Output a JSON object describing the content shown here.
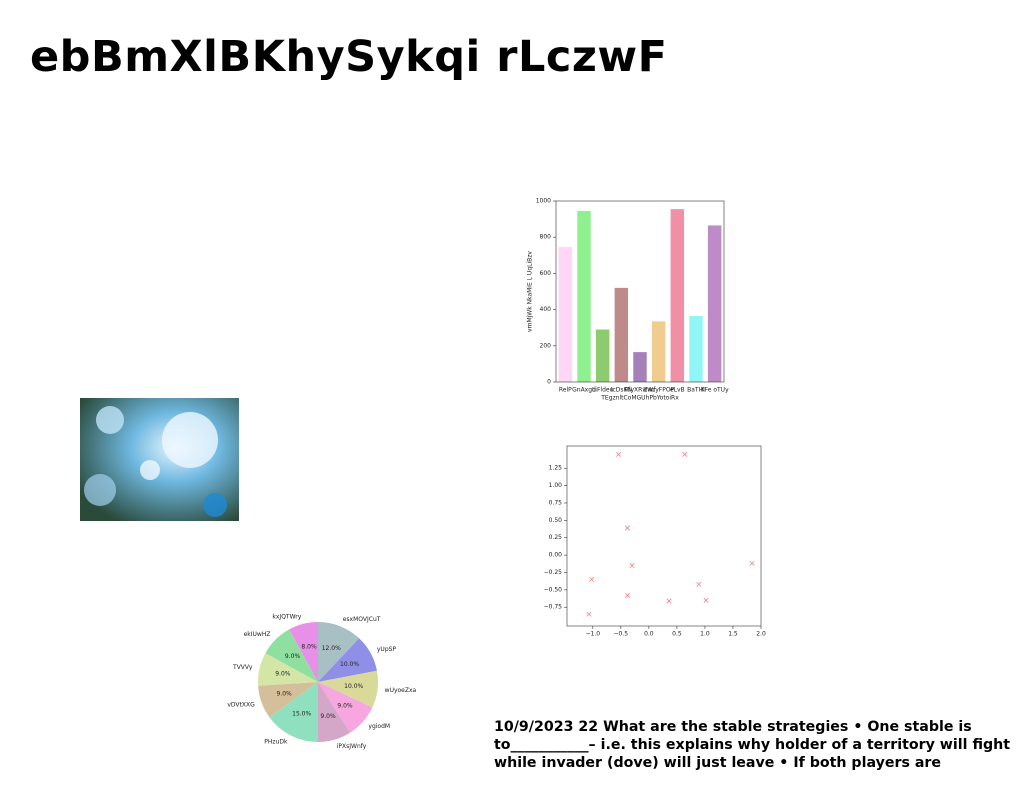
{
  "title": "ebBmXlBKhySykqi rLczwF",
  "text": "10/9/2023 22 What are the stable strategies • One stable is to___________– i.e. this explains why holder of a territory will fight while invader (dove) will just leave • If both players are",
  "chart_data": [
    {
      "type": "bar",
      "categories": [
        "RelP",
        "GnAxgd",
        "LiFldeu",
        "IcDsKN",
        "RlyXRwwz",
        "ZWfyFPOP",
        "eLvB",
        "BaTHI",
        "KFe oTUy"
      ],
      "values": [
        745,
        945,
        290,
        520,
        165,
        335,
        955,
        365,
        865
      ],
      "colors": [
        "#ffd6f5",
        "#8ef08e",
        "#8ccc6e",
        "#bf8a8a",
        "#a680b8",
        "#f0cc8f",
        "#f08fa6",
        "#8ff5f5",
        "#bf8ac8"
      ],
      "xlabel": "TEgznltCoMGUhPbYotoiRx",
      "ylabel": "vmMjWk NkaMiE L UqLiBzv",
      "ylim": [
        0,
        1000
      ],
      "yticks": [
        0,
        200,
        400,
        600,
        800,
        1000
      ]
    },
    {
      "type": "scatter",
      "color": "#f08080",
      "marker": "x",
      "x": [
        -1.07,
        -1.02,
        -0.54,
        -0.38,
        -0.3,
        -0.38,
        0.36,
        0.64,
        0.89,
        1.02,
        1.84
      ],
      "values": [
        -0.85,
        -0.35,
        1.45,
        0.39,
        -0.15,
        -0.58,
        -0.66,
        1.45,
        -0.42,
        -0.65,
        -0.12
      ],
      "xlim": [
        -1.46,
        2.0
      ],
      "xticks": [
        {
          "value": -1,
          "label": "−1.0"
        },
        {
          "value": -0.5,
          "label": "−0.5"
        },
        {
          "value": 0,
          "label": "0.0"
        },
        {
          "value": 0.5,
          "label": "0.5"
        },
        {
          "value": 1,
          "label": "1.0"
        },
        {
          "value": 1.5,
          "label": "1.5"
        },
        {
          "value": 2,
          "label": "2.0"
        }
      ],
      "ylim": [
        -1.02,
        1.57
      ],
      "yticks": [
        {
          "value": -0.75,
          "label": "−0.75"
        },
        {
          "value": -0.5,
          "label": "−0.50"
        },
        {
          "value": -0.25,
          "label": "−0.25"
        },
        {
          "value": 0,
          "label": "0.00"
        },
        0.25,
        {
          "value": 0.5,
          "label": "0.50"
        },
        0.75,
        {
          "value": 1,
          "label": "1.00"
        },
        1.25
      ]
    },
    {
      "type": "pie",
      "categories": [
        "esxMOVJCuT",
        "yUpSP",
        "wUyoeZxa",
        "ygiodM",
        "iPXsJWnfy",
        "PHzuDk",
        "vDVtXXG",
        "TVVVy",
        "ekIUwHZ",
        "kxJQTWry"
      ],
      "values": [
        12,
        10,
        10,
        9,
        9,
        15,
        9,
        9,
        9,
        8
      ],
      "value_labels": [
        "12.0%",
        "10.0%",
        "10.0%",
        "9.0%",
        "9.0%",
        "15.0%",
        "9.0%",
        "9.0%",
        "9.0%",
        "8.0%"
      ],
      "colors": [
        "#a8bfc4",
        "#8f8fe8",
        "#d9d99a",
        "#f7a6e0",
        "#d4a6c8",
        "#8fe0bf",
        "#d4bf9a",
        "#d4e6a6",
        "#8fe0a0",
        "#e88fe8"
      ]
    }
  ]
}
